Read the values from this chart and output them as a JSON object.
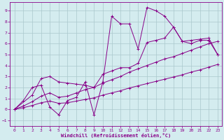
{
  "xlabel": "Windchill (Refroidissement éolien,°C)",
  "background_color": "#d4ecef",
  "grid_color": "#aac8cc",
  "line_color": "#880088",
  "xlim": [
    -0.5,
    23.5
  ],
  "ylim": [
    -1.5,
    9.8
  ],
  "xticks": [
    0,
    1,
    2,
    3,
    4,
    5,
    6,
    7,
    8,
    9,
    10,
    11,
    12,
    13,
    14,
    15,
    16,
    17,
    18,
    19,
    20,
    21,
    22,
    23
  ],
  "yticks": [
    -1,
    0,
    1,
    2,
    3,
    4,
    5,
    6,
    7,
    8,
    9
  ],
  "curve1_x": [
    0,
    1,
    2,
    3,
    4,
    5,
    6,
    7,
    8,
    9,
    10,
    11,
    12,
    13,
    14,
    15,
    16,
    17,
    18,
    19,
    20,
    21,
    22,
    23
  ],
  "curve1_y": [
    0.0,
    0.8,
    2.0,
    2.2,
    0.2,
    -0.5,
    0.8,
    1.1,
    2.5,
    -0.5,
    2.5,
    8.5,
    7.8,
    7.8,
    5.5,
    9.3,
    9.0,
    8.5,
    7.5,
    6.2,
    6.0,
    6.3,
    6.3,
    5.0
  ],
  "curve2_x": [
    0,
    2,
    3,
    4,
    5,
    6,
    7,
    8,
    9,
    10,
    11,
    12,
    13,
    14,
    15,
    16,
    17,
    18,
    19,
    20,
    21,
    22,
    23
  ],
  "curve2_y": [
    0.0,
    1.3,
    2.8,
    3.0,
    2.5,
    2.4,
    2.3,
    2.2,
    2.0,
    3.2,
    3.5,
    3.8,
    3.8,
    4.2,
    6.1,
    6.3,
    6.5,
    7.5,
    6.2,
    6.3,
    6.4,
    6.5,
    5.0
  ],
  "curve3_x": [
    0,
    1,
    2,
    3,
    4,
    5,
    6,
    7,
    8,
    9,
    10,
    11,
    12,
    13,
    14,
    15,
    16,
    17,
    18,
    19,
    20,
    21,
    22,
    23
  ],
  "curve3_y": [
    0.0,
    0.3,
    0.7,
    1.2,
    1.5,
    1.1,
    1.2,
    1.5,
    1.8,
    2.0,
    2.4,
    2.7,
    3.0,
    3.4,
    3.7,
    4.0,
    4.3,
    4.6,
    4.8,
    5.1,
    5.4,
    5.7,
    6.0,
    6.2
  ],
  "curve4_x": [
    0,
    1,
    2,
    3,
    4,
    5,
    6,
    7,
    8,
    9,
    10,
    11,
    12,
    13,
    14,
    15,
    16,
    17,
    18,
    19,
    20,
    21,
    22,
    23
  ],
  "curve4_y": [
    0.0,
    0.15,
    0.35,
    0.6,
    0.75,
    0.55,
    0.6,
    0.75,
    0.9,
    1.05,
    1.3,
    1.5,
    1.7,
    1.95,
    2.15,
    2.35,
    2.55,
    2.75,
    2.95,
    3.15,
    3.4,
    3.6,
    3.85,
    4.1
  ]
}
